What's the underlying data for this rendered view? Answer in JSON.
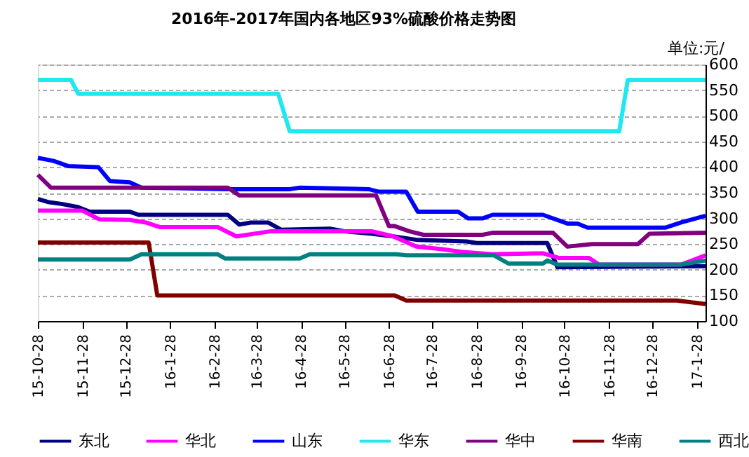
{
  "chart_data": {
    "type": "line",
    "title": "2016年-2017年国内各地区93%硫酸价格走势图",
    "annotations": [
      "单位:元/"
    ],
    "xlim": [
      "2015-10-28",
      "2017-02-03"
    ],
    "xticks": [
      {
        "value": "2015-10-28",
        "label": "15-10-28"
      },
      {
        "value": "2015-11-28",
        "label": "15-11-28"
      },
      {
        "value": "2015-12-28",
        "label": "15-12-28"
      },
      {
        "value": "2016-01-28",
        "label": "16-1-28"
      },
      {
        "value": "2016-02-28",
        "label": "16-2-28"
      },
      {
        "value": "2016-03-28",
        "label": "16-3-28"
      },
      {
        "value": "2016-04-28",
        "label": "16-4-28"
      },
      {
        "value": "2016-05-28",
        "label": "16-5-28"
      },
      {
        "value": "2016-06-28",
        "label": "16-6-28"
      },
      {
        "value": "2016-07-28",
        "label": "16-7-28"
      },
      {
        "value": "2016-08-28",
        "label": "16-8-28"
      },
      {
        "value": "2016-09-28",
        "label": "16-9-28"
      },
      {
        "value": "2016-10-28",
        "label": "16-10-28"
      },
      {
        "value": "2016-11-28",
        "label": "16-11-28"
      },
      {
        "value": "2016-12-28",
        "label": "16-12-28"
      },
      {
        "value": "2017-01-28",
        "label": "17-1-28"
      }
    ],
    "ylim": [
      100,
      600
    ],
    "yticks": [
      100,
      150,
      200,
      250,
      300,
      350,
      400,
      450,
      500,
      550,
      600
    ],
    "grid": "y",
    "legend": "bottom",
    "line_style": "solid",
    "marker": "none",
    "series": [
      {
        "name": "东北",
        "color": "#000080",
        "x": [
          "2015-10-28",
          "2015-11-04",
          "2015-11-14",
          "2015-11-25",
          "2015-12-03",
          "2015-12-31",
          "2016-01-06",
          "2016-03-08",
          "2016-03-16",
          "2016-03-24",
          "2016-04-05",
          "2016-04-14",
          "2016-05-18",
          "2016-05-28",
          "2016-06-16",
          "2016-07-01",
          "2016-07-18",
          "2016-08-21",
          "2016-08-28",
          "2016-10-16",
          "2016-10-23",
          "2017-02-03"
        ],
        "values": [
          338,
          332,
          328,
          322,
          313,
          313,
          307,
          307,
          288,
          292,
          292,
          278,
          280,
          275,
          270,
          265,
          258,
          255,
          252,
          252,
          205,
          207
        ]
      },
      {
        "name": "华北",
        "color": "#ff00ff",
        "x": [
          "2015-10-28",
          "2015-11-28",
          "2015-12-10",
          "2015-12-31",
          "2016-01-11",
          "2016-01-21",
          "2016-03-01",
          "2016-03-14",
          "2016-04-07",
          "2016-06-16",
          "2016-07-01",
          "2016-07-17",
          "2016-08-04",
          "2016-08-17",
          "2016-09-08",
          "2016-10-13",
          "2016-10-24",
          "2016-11-14",
          "2016-11-21",
          "2017-01-17",
          "2017-02-03"
        ],
        "values": [
          315,
          315,
          298,
          297,
          292,
          283,
          283,
          265,
          275,
          275,
          265,
          245,
          240,
          235,
          230,
          232,
          223,
          223,
          210,
          210,
          228
        ]
      },
      {
        "name": "山东",
        "color": "#0000ff",
        "x": [
          "2015-10-28",
          "2015-11-08",
          "2015-11-18",
          "2015-12-09",
          "2015-12-17",
          "2015-12-31",
          "2016-01-08",
          "2016-03-13",
          "2016-04-20",
          "2016-04-27",
          "2016-06-14",
          "2016-06-21",
          "2016-07-10",
          "2016-07-18",
          "2016-08-15",
          "2016-08-22",
          "2016-09-01",
          "2016-09-08",
          "2016-10-13",
          "2016-10-30",
          "2016-11-06",
          "2016-11-13",
          "2017-01-06",
          "2017-01-17",
          "2017-02-03"
        ],
        "values": [
          418,
          412,
          402,
          400,
          373,
          370,
          360,
          357,
          357,
          360,
          357,
          352,
          352,
          313,
          313,
          300,
          300,
          307,
          307,
          290,
          290,
          282,
          282,
          292,
          305
        ]
      },
      {
        "name": "华东",
        "color": "#1ee8f0",
        "x": [
          "2015-10-28",
          "2015-11-20",
          "2015-11-25",
          "2016-04-12",
          "2016-04-20",
          "2016-12-05",
          "2016-12-11",
          "2017-02-03"
        ],
        "values": [
          570,
          570,
          543,
          543,
          470,
          470,
          570,
          570
        ]
      },
      {
        "name": "华中",
        "color": "#800080",
        "x": [
          "2015-10-28",
          "2015-11-06",
          "2016-03-08",
          "2016-03-16",
          "2016-06-19",
          "2016-06-28",
          "2016-07-02",
          "2016-07-12",
          "2016-07-22",
          "2016-09-01",
          "2016-09-08",
          "2016-10-20",
          "2016-10-30",
          "2016-11-16",
          "2016-12-18",
          "2016-12-26",
          "2017-02-03"
        ],
        "values": [
          385,
          360,
          360,
          345,
          345,
          285,
          285,
          275,
          268,
          268,
          272,
          272,
          245,
          250,
          250,
          270,
          272
        ]
      },
      {
        "name": "华南",
        "color": "#800000",
        "x": [
          "2015-10-28",
          "2016-01-13",
          "2016-01-19",
          "2016-07-02",
          "2016-07-10",
          "2017-01-14",
          "2017-02-03"
        ],
        "values": [
          253,
          253,
          150,
          150,
          140,
          140,
          133
        ]
      },
      {
        "name": "西北",
        "color": "#008080",
        "x": [
          "2015-10-28",
          "2015-12-31",
          "2016-01-08",
          "2016-03-01",
          "2016-03-06",
          "2016-04-27",
          "2016-05-04",
          "2016-07-03",
          "2016-07-10",
          "2016-09-09",
          "2016-09-19",
          "2016-10-13",
          "2016-10-16",
          "2016-10-23",
          "2017-01-17",
          "2017-02-03"
        ],
        "values": [
          220,
          220,
          230,
          230,
          222,
          222,
          230,
          230,
          228,
          228,
          212,
          212,
          218,
          210,
          210,
          218
        ]
      }
    ]
  }
}
